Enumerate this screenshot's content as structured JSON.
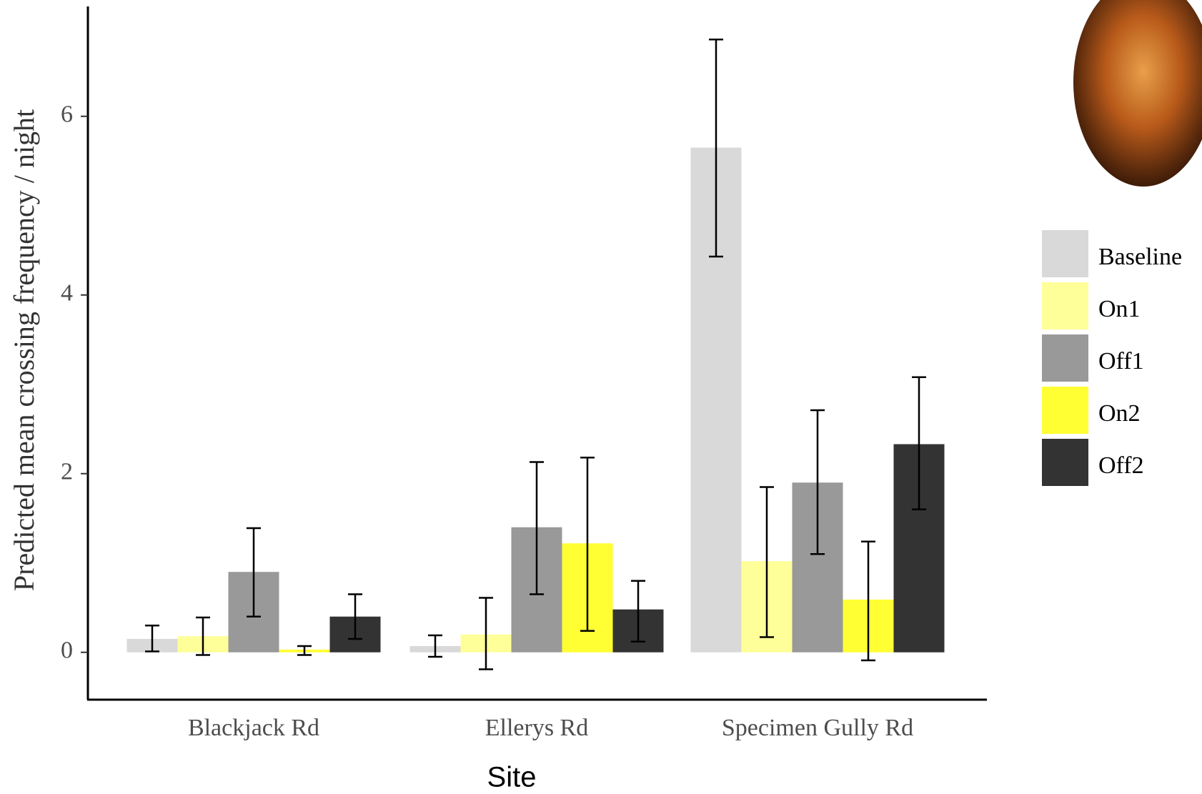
{
  "chart_data": {
    "type": "bar",
    "x_label": "Site",
    "y_label": "Predicted mean crossing frequency / night",
    "categories": [
      "Blackjack Rd",
      "Ellerys Rd",
      "Specimen Gully Rd"
    ],
    "series": [
      {
        "name": "Baseline",
        "color": "#d9d9d9",
        "values": [
          0.15,
          0.07,
          5.65
        ],
        "lower": [
          0.01,
          -0.05,
          4.43
        ],
        "upper": [
          0.3,
          0.19,
          6.86
        ]
      },
      {
        "name": "On1",
        "color": "#ffff99",
        "values": [
          0.18,
          0.2,
          1.02
        ],
        "lower": [
          -0.03,
          -0.19,
          0.17
        ],
        "upper": [
          0.39,
          0.61,
          1.85
        ]
      },
      {
        "name": "Off1",
        "color": "#999999",
        "values": [
          0.9,
          1.4,
          1.9
        ],
        "lower": [
          0.4,
          0.65,
          1.1
        ],
        "upper": [
          1.39,
          2.13,
          2.71
        ]
      },
      {
        "name": "On2",
        "color": "#ffff33",
        "values": [
          0.03,
          1.22,
          0.59
        ],
        "lower": [
          -0.03,
          0.24,
          -0.09
        ],
        "upper": [
          0.07,
          2.18,
          1.24
        ]
      },
      {
        "name": "Off2",
        "color": "#333333",
        "values": [
          0.4,
          0.48,
          2.33
        ],
        "lower": [
          0.15,
          0.12,
          1.6
        ],
        "upper": [
          0.65,
          0.8,
          3.08
        ]
      }
    ],
    "ylim": [
      -0.53,
      7.23
    ],
    "yticks": [
      0,
      2,
      4,
      6
    ]
  }
}
